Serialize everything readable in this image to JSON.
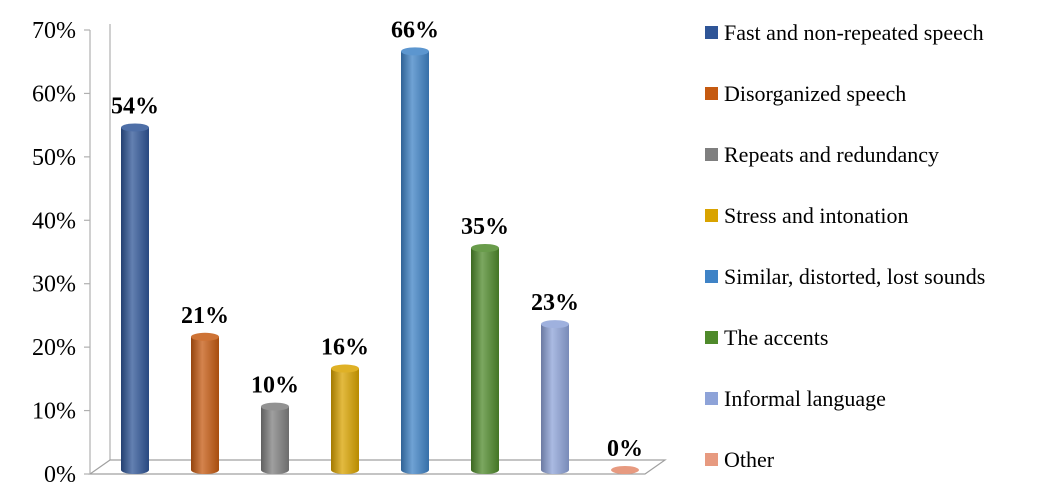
{
  "chart_data": {
    "type": "bar",
    "title": "",
    "xlabel": "",
    "ylabel": "",
    "ylim": [
      0,
      70
    ],
    "yticks": [
      "0%",
      "10%",
      "20%",
      "30%",
      "40%",
      "50%",
      "60%",
      "70%"
    ],
    "grid": false,
    "legend_position": "right",
    "categories": [
      "Fast and non-repeated speech",
      "Disorganized speech",
      "Repeats and redundancy",
      "Stress and intonation",
      "Similar, distorted, lost sounds",
      "The accents",
      "Informal language",
      "Other"
    ],
    "values": [
      54,
      21,
      10,
      16,
      66,
      35,
      23,
      0
    ],
    "data_labels": [
      "54%",
      "21%",
      "10%",
      "16%",
      "66%",
      "35%",
      "23%",
      "0%"
    ],
    "colors": [
      "#2f5597",
      "#c55a11",
      "#7f7f7f",
      "#d9a300",
      "#3f83c6",
      "#4f8a2b",
      "#8ea3d8",
      "#e79a80"
    ]
  }
}
